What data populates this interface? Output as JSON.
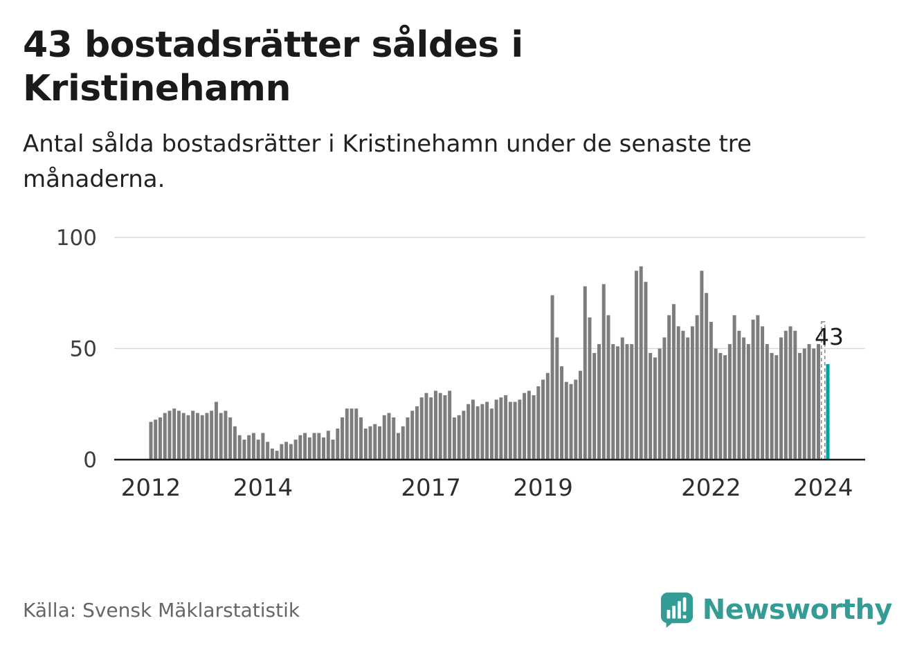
{
  "header": {
    "title": "43 bostadsrätter såldes i Kristinehamn",
    "subtitle": "Antal sålda bostadsrätter i Kristinehamn under de senaste tre månaderna."
  },
  "chart_data": {
    "type": "bar",
    "title": "43 bostadsrätter såldes i Kristinehamn",
    "xlabel": "",
    "ylabel": "",
    "ylim": [
      0,
      100
    ],
    "yticks": [
      0,
      50,
      100
    ],
    "xticks": [
      2012,
      2014,
      2017,
      2019,
      2022,
      2024
    ],
    "start_year": 2012,
    "frequency": "monthly",
    "grid": "horizontal",
    "values": [
      17,
      18,
      19,
      21,
      22,
      23,
      22,
      21,
      20,
      22,
      21,
      20,
      21,
      22,
      26,
      21,
      22,
      19,
      15,
      11,
      9,
      11,
      12,
      9,
      12,
      8,
      5,
      4,
      7,
      8,
      7,
      9,
      11,
      12,
      10,
      12,
      12,
      10,
      13,
      9,
      14,
      19,
      23,
      23,
      23,
      19,
      14,
      15,
      16,
      15,
      20,
      21,
      19,
      12,
      15,
      19,
      22,
      24,
      28,
      30,
      28,
      31,
      30,
      29,
      31,
      19,
      20,
      22,
      25,
      27,
      24,
      25,
      26,
      23,
      27,
      28,
      29,
      26,
      26,
      27,
      30,
      31,
      29,
      33,
      36,
      39,
      74,
      55,
      42,
      35,
      34,
      36,
      40,
      78,
      64,
      48,
      52,
      79,
      65,
      52,
      51,
      55,
      52,
      52,
      85,
      87,
      80,
      48,
      46,
      50,
      55,
      65,
      70,
      60,
      58,
      55,
      60,
      65,
      85,
      75,
      62,
      50,
      48,
      47,
      52,
      65,
      58,
      55,
      52,
      63,
      65,
      60,
      52,
      48,
      47,
      55,
      58,
      60,
      58,
      48,
      50,
      52,
      50,
      52,
      62,
      43
    ],
    "preliminary_index": 144,
    "highlight_index": 145,
    "annotation": {
      "text": "43",
      "value": 43
    },
    "bar_color": "#7d7d7d",
    "highlight_color": "#00a2a4",
    "preliminary_color": "#8a8a8a",
    "grid_color": "#d8d8d8",
    "axis_color": "#1a1a1a",
    "ytick_color": "#3d3d3d",
    "xtick_color": "#2e2e2e",
    "annotation_color": "#1a1a1a"
  },
  "footer": {
    "source": "Källa: Svensk Mäklarstatistik",
    "brand": "Newsworthy",
    "brand_color": "#359b95"
  }
}
